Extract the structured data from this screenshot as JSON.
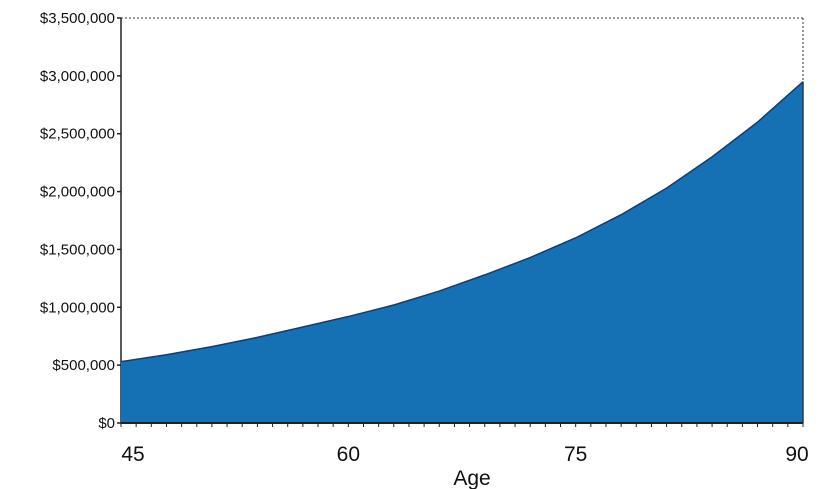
{
  "chart_data": {
    "type": "area",
    "xlabel": "Age",
    "ylabel": "",
    "title": "",
    "xlim": [
      45,
      90
    ],
    "ylim": [
      0,
      3500000
    ],
    "x_ticks": [
      45,
      60,
      75,
      90
    ],
    "x_tick_labels": [
      "45",
      "60",
      "75",
      "90"
    ],
    "y_ticks": [
      0,
      500000,
      1000000,
      1500000,
      2000000,
      2500000,
      3000000,
      3500000
    ],
    "y_tick_labels": [
      "$0",
      "$500,000",
      "$1,000,000",
      "$1,500,000",
      "$2,000,000",
      "$2,500,000",
      "$3,000,000",
      "$3,500,000"
    ],
    "grid": false,
    "fill_color": "#1570b4",
    "line_color": "#1f3a5c",
    "series": [
      {
        "x": [
          45,
          48,
          51,
          54,
          57,
          60,
          63,
          66,
          69,
          72,
          75,
          78,
          81,
          84,
          87,
          90
        ],
        "values": [
          530000,
          590000,
          660000,
          740000,
          830000,
          920000,
          1020000,
          1140000,
          1280000,
          1430000,
          1600000,
          1800000,
          2030000,
          2300000,
          2600000,
          2950000
        ]
      }
    ]
  }
}
